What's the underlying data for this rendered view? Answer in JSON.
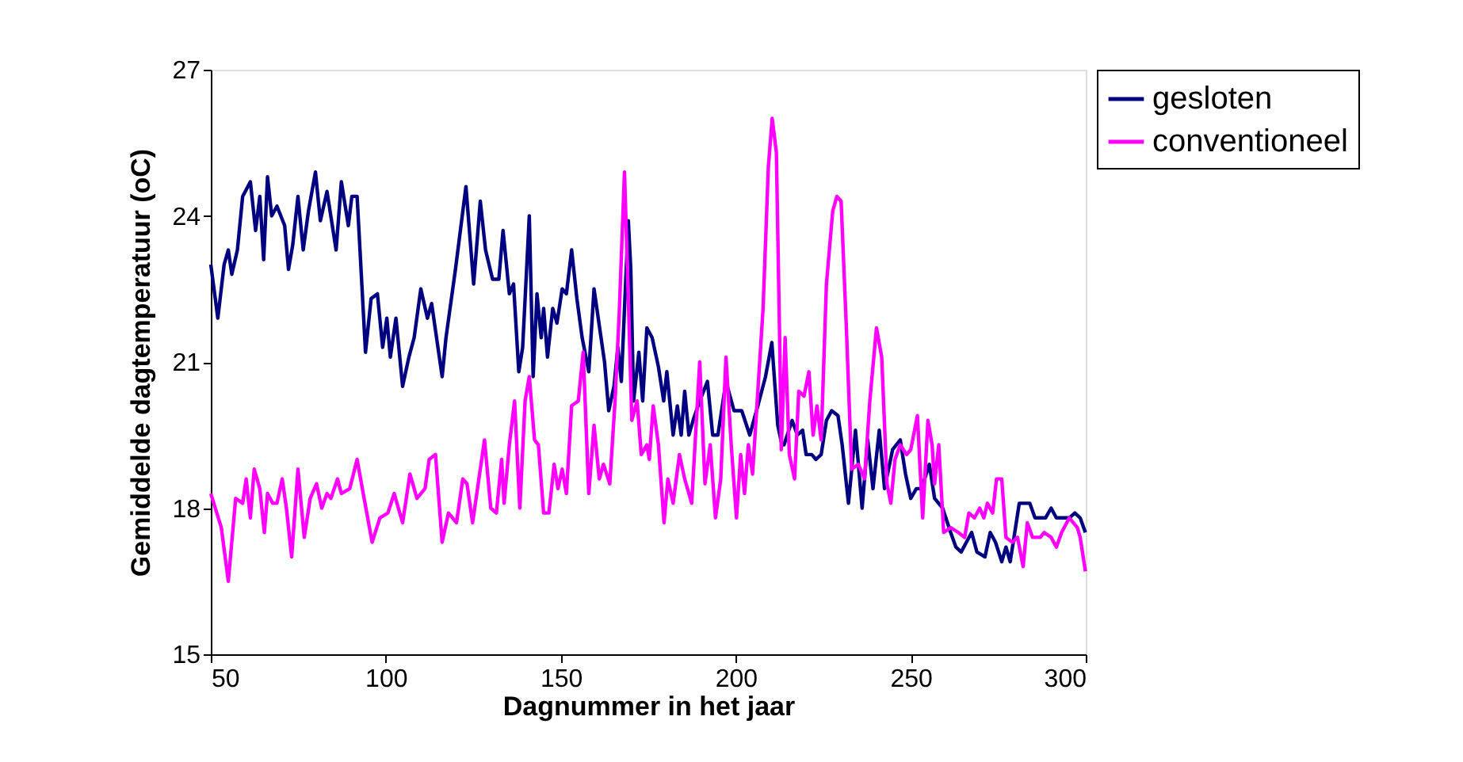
{
  "chart_data": {
    "type": "line",
    "xlabel": "Dagnummer in het jaar",
    "ylabel": "Gemiddelde dagtemperatuur (oC)",
    "xlim": [
      50,
      300
    ],
    "xticks": [
      50,
      100,
      150,
      200,
      250,
      300
    ],
    "ylim": [
      15,
      27
    ],
    "yticks": [
      15,
      18,
      21,
      24,
      27
    ],
    "grid": false,
    "legend": "top right",
    "marker": "none",
    "line_style": "solid",
    "series": [
      {
        "name": "gesloten",
        "color": "#000080",
        "x": [
          50,
          52.0,
          53.8,
          55.0,
          56.0,
          57.6,
          59.1,
          61.3,
          62.8,
          64.0,
          65.1,
          66.2,
          67.4,
          68.9,
          71.1,
          72.2,
          73.4,
          74.9,
          76.4,
          77.9,
          79.9,
          81.3,
          83.2,
          85.8,
          87.3,
          89.3,
          90.3,
          91.8,
          94.2,
          95.8,
          97.6,
          99.1,
          100.3,
          101.3,
          102.9,
          104.8,
          106.6,
          108.1,
          110.0,
          111.9,
          113.1,
          116.1,
          117.2,
          119.9,
          122.9,
          125.1,
          127.0,
          128.5,
          130.5,
          132.3,
          133.5,
          135.3,
          136.5,
          138.0,
          139.1,
          141.0,
          142.1,
          143.2,
          144.4,
          145.1,
          146.2,
          147.7,
          148.9,
          150.4,
          151.6,
          153.1,
          154.6,
          156.1,
          158.0,
          159.5,
          161.3,
          162.5,
          163.7,
          165.2,
          166.3,
          167.3,
          169.3,
          170.0,
          170.8,
          172.3,
          173.4,
          174.6,
          176.1,
          177.9,
          179.4,
          180.3,
          182.1,
          183.3,
          184.4,
          185.4,
          186.6,
          187.8,
          189.7,
          191.9,
          193.4,
          194.9,
          197.2,
          199.5,
          201.7,
          204.0,
          206.3,
          208.5,
          210.3,
          212.0,
          213.2,
          213.8,
          216.1,
          217.6,
          219.1,
          220.1,
          221.7,
          222.9,
          224.4,
          225.9,
          227.4,
          229.2,
          230.4,
          232.2,
          234.2,
          236.1,
          237.7,
          239.2,
          241.0,
          242.5,
          244.8,
          247.0,
          248.5,
          250.0,
          251.6,
          253.1,
          255.3,
          256.8,
          259.1,
          261.4,
          262.9,
          264.4,
          265.9,
          267.4,
          268.9,
          271.2,
          272.7,
          274.2,
          276.0,
          277.2,
          278.4,
          279.5,
          281.0,
          284.0,
          285.5,
          288.5,
          290.1,
          291.6,
          295.3,
          296.9,
          298.4,
          299.9
        ],
        "values": [
          23.0,
          21.9,
          23.0,
          23.3,
          22.8,
          23.3,
          24.4,
          24.7,
          23.7,
          24.4,
          23.1,
          24.8,
          24.0,
          24.2,
          23.8,
          22.9,
          23.4,
          24.4,
          23.3,
          24.1,
          24.9,
          23.9,
          24.5,
          23.3,
          24.7,
          23.8,
          24.4,
          24.4,
          21.2,
          22.3,
          22.4,
          21.3,
          21.9,
          21.1,
          21.9,
          20.5,
          21.1,
          21.5,
          22.5,
          21.9,
          22.2,
          20.7,
          21.5,
          22.9,
          24.6,
          22.6,
          24.3,
          23.3,
          22.7,
          22.7,
          23.7,
          22.4,
          22.6,
          20.8,
          21.3,
          24.0,
          20.7,
          22.4,
          21.5,
          22.1,
          21.1,
          22.1,
          21.8,
          22.5,
          22.4,
          23.3,
          22.3,
          21.5,
          20.8,
          22.5,
          21.6,
          21.0,
          20.0,
          20.5,
          21.3,
          20.6,
          23.9,
          22.9,
          20.2,
          21.2,
          20.2,
          21.7,
          21.5,
          20.9,
          20.2,
          20.8,
          19.5,
          20.1,
          19.5,
          20.4,
          19.5,
          19.8,
          20.2,
          20.6,
          19.5,
          19.5,
          20.6,
          20.0,
          20.0,
          19.5,
          20.1,
          20.7,
          21.4,
          19.7,
          19.3,
          19.3,
          19.8,
          19.5,
          19.6,
          19.1,
          19.1,
          19.0,
          19.1,
          19.8,
          20.0,
          19.9,
          19.3,
          18.1,
          19.6,
          18.0,
          19.4,
          18.4,
          19.6,
          18.4,
          19.2,
          19.4,
          18.7,
          18.2,
          18.4,
          18.4,
          18.9,
          18.2,
          18.0,
          17.5,
          17.2,
          17.1,
          17.3,
          17.5,
          17.1,
          17.0,
          17.5,
          17.3,
          16.9,
          17.2,
          16.9,
          17.4,
          18.1,
          18.1,
          17.8,
          17.8,
          18.0,
          17.8,
          17.8,
          17.9,
          17.8,
          17.5
        ]
      },
      {
        "name": "conventioneel",
        "color": "#ff00ff",
        "x": [
          50,
          53.0,
          55.0,
          57.1,
          59.1,
          60.1,
          61.3,
          62.4,
          64.0,
          65.3,
          66.2,
          67.7,
          68.9,
          70.4,
          71.6,
          73.1,
          74.9,
          76.7,
          78.4,
          80.2,
          81.7,
          83.2,
          84.3,
          86.2,
          87.3,
          89.7,
          91.8,
          93.8,
          96.1,
          98.3,
          100.6,
          102.4,
          104.8,
          106.9,
          108.9,
          111.2,
          112.4,
          114.2,
          116.1,
          117.9,
          120.2,
          122.0,
          123.2,
          124.8,
          126.6,
          128.2,
          130.0,
          131.6,
          133.1,
          133.8,
          135.3,
          136.8,
          138.3,
          139.8,
          141.0,
          142.5,
          143.6,
          145.1,
          146.6,
          148.1,
          149.2,
          150.4,
          151.6,
          153.1,
          155.0,
          156.4,
          158.0,
          159.5,
          161.0,
          162.2,
          164.0,
          165.5,
          166.7,
          168.2,
          169.3,
          170.3,
          171.8,
          173.0,
          174.6,
          175.3,
          176.4,
          177.9,
          179.5,
          180.6,
          182.1,
          183.9,
          185.4,
          187.4,
          189.7,
          191.2,
          192.7,
          194.2,
          195.7,
          197.2,
          198.7,
          200.2,
          201.4,
          202.5,
          203.6,
          204.8,
          206.3,
          207.8,
          209.3,
          210.4,
          211.6,
          212.6,
          213.0,
          214.1,
          215.3,
          216.8,
          218.0,
          219.5,
          220.9,
          222.1,
          223.2,
          224.4,
          225.9,
          227.7,
          228.9,
          230.1,
          231.6,
          233.1,
          235.0,
          236.8,
          238.3,
          240.2,
          241.7,
          243.2,
          244.3,
          245.5,
          247.0,
          248.8,
          250.0,
          251.9,
          253.4,
          254.9,
          256.1,
          256.8,
          258.0,
          259.4,
          261.4,
          263.6,
          265.4,
          266.6,
          268.2,
          269.7,
          270.9,
          271.9,
          273.4,
          274.5,
          276.0,
          277.2,
          279.0,
          280.5,
          282.1,
          283.3,
          284.8,
          287.0,
          288.1,
          290.1,
          291.6,
          293.1,
          295.3,
          297.6,
          298.4,
          299.9
        ],
        "values": [
          18.3,
          17.6,
          16.5,
          18.2,
          18.1,
          18.6,
          17.8,
          18.8,
          18.4,
          17.5,
          18.3,
          18.1,
          18.1,
          18.6,
          18.0,
          17.0,
          18.8,
          17.4,
          18.2,
          18.5,
          18.0,
          18.3,
          18.2,
          18.6,
          18.3,
          18.4,
          19.0,
          18.2,
          17.3,
          17.8,
          17.9,
          18.3,
          17.7,
          18.7,
          18.2,
          18.4,
          19.0,
          19.1,
          17.3,
          17.9,
          17.7,
          18.6,
          18.5,
          17.7,
          18.6,
          19.4,
          18.0,
          17.9,
          19.0,
          18.1,
          19.3,
          20.2,
          18.0,
          20.2,
          20.7,
          19.4,
          19.3,
          17.9,
          17.9,
          18.9,
          18.4,
          18.8,
          18.3,
          20.1,
          20.2,
          21.2,
          18.3,
          19.7,
          18.6,
          18.9,
          18.5,
          20.2,
          22.0,
          24.9,
          22.3,
          19.8,
          20.2,
          19.1,
          19.3,
          19.0,
          20.1,
          19.3,
          17.7,
          18.6,
          18.1,
          19.1,
          18.6,
          18.1,
          21.0,
          18.5,
          19.3,
          17.8,
          18.6,
          21.1,
          19.3,
          17.8,
          19.1,
          18.3,
          19.3,
          18.7,
          20.4,
          22.1,
          25.0,
          26.0,
          25.3,
          21.2,
          19.2,
          21.5,
          19.1,
          18.6,
          20.4,
          20.3,
          20.8,
          19.5,
          20.1,
          19.4,
          22.6,
          24.1,
          24.4,
          24.3,
          21.7,
          18.8,
          18.9,
          18.6,
          20.2,
          21.7,
          21.1,
          18.5,
          18.1,
          19.0,
          19.3,
          19.1,
          19.2,
          19.9,
          17.8,
          19.8,
          19.3,
          18.5,
          19.3,
          17.5,
          17.6,
          17.5,
          17.4,
          17.9,
          17.8,
          18.0,
          17.8,
          18.1,
          17.9,
          18.6,
          18.6,
          17.4,
          17.3,
          17.4,
          16.8,
          17.7,
          17.4,
          17.4,
          17.5,
          17.4,
          17.2,
          17.5,
          17.8,
          17.6,
          17.4,
          16.7
        ]
      }
    ]
  }
}
